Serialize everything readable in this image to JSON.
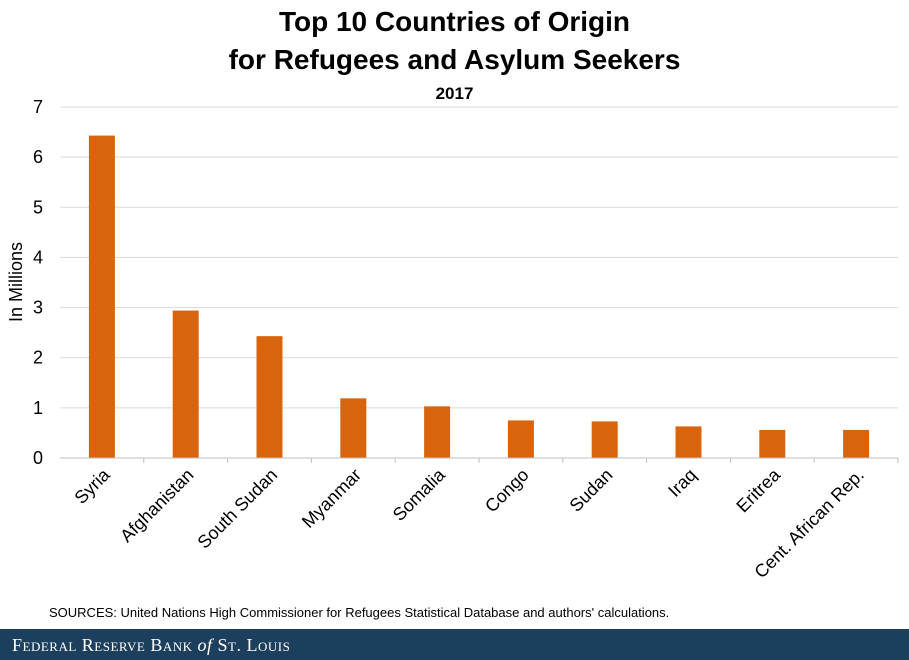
{
  "chart_data": {
    "type": "bar",
    "title_line1": "Top 10 Countries of Origin",
    "title_line2": "for Refugees and Asylum Seekers",
    "subtitle": "2017",
    "ylabel": "In Millions",
    "xlabel": "",
    "ylim": [
      0,
      7
    ],
    "yticks": [
      0,
      1,
      2,
      3,
      4,
      5,
      6,
      7
    ],
    "grid": true,
    "bar_color": "#d8650e",
    "categories": [
      "Syria",
      "Afghanistan",
      "South Sudan",
      "Myanmar",
      "Somalia",
      "Congo",
      "Sudan",
      "Iraq",
      "Eritrea",
      "Cent. African Rep."
    ],
    "values": [
      6.43,
      2.94,
      2.43,
      1.19,
      1.03,
      0.75,
      0.73,
      0.63,
      0.56,
      0.56
    ]
  },
  "source": "SOURCES: United Nations High Commissioner for Refugees Statistical Database and authors' calculations.",
  "footer": {
    "logo_text_pre": "Federal Reserve Bank ",
    "logo_text_of": "of",
    "logo_text_post": " St. Louis",
    "background": "#1d3f5e"
  }
}
